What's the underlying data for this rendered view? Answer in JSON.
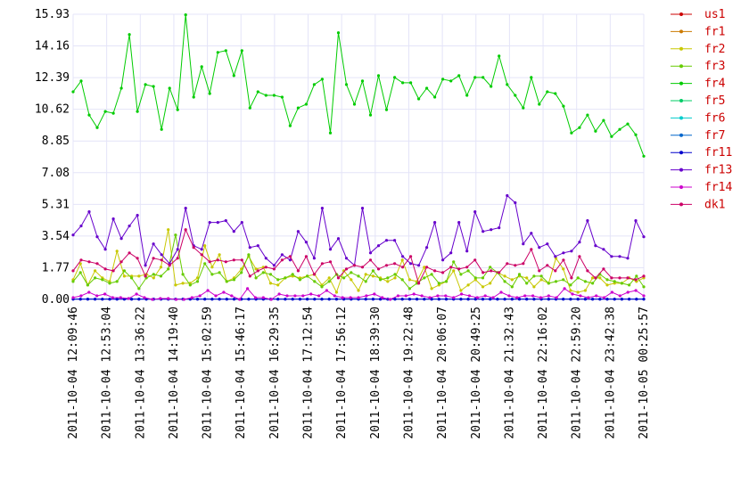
{
  "chart_data": {
    "type": "line",
    "title": "",
    "xlabel": "",
    "ylabel": "",
    "ylim": [
      0,
      15.93
    ],
    "y_ticks": [
      "0.00",
      "1.77",
      "3.54",
      "5.31",
      "7.08",
      "8.85",
      "10.62",
      "12.39",
      "14.16",
      "15.93"
    ],
    "grid": "on",
    "legend_placement": "right",
    "x_ticks": [
      "2011-10-04 12:09:46",
      "2011-10-04 12:53:04",
      "2011-10-04 13:36:22",
      "2011-10-04 14:19:40",
      "2011-10-04 15:02:59",
      "2011-10-04 15:46:17",
      "2011-10-04 16:29:35",
      "2011-10-04 17:12:54",
      "2011-10-04 17:56:12",
      "2011-10-04 18:39:30",
      "2011-10-04 19:22:48",
      "2011-10-04 20:06:07",
      "2011-10-04 20:49:25",
      "2011-10-04 21:32:43",
      "2011-10-04 22:16:02",
      "2011-10-04 22:59:20",
      "2011-10-04 23:42:38",
      "2011-10-05 00:25:57"
    ],
    "series": [
      {
        "name": "us1",
        "color": "#cc0000",
        "values": []
      },
      {
        "name": "fr1",
        "color": "#cc7a00",
        "values": []
      },
      {
        "name": "fr2",
        "color": "#c8c800",
        "values": [
          1.1,
          2.0,
          0.8,
          1.6,
          1.2,
          1.0,
          2.7,
          1.3,
          1.3,
          1.3,
          1.4,
          1.2,
          1.8,
          3.9,
          0.8,
          0.9,
          0.9,
          1.2,
          3.0,
          1.8,
          2.5,
          1.0,
          1.2,
          1.7,
          2.4,
          1.7,
          1.8,
          0.9,
          0.8,
          1.2,
          1.3,
          1.2,
          1.3,
          1.4,
          0.8,
          1.2,
          0.4,
          1.6,
          1.1,
          0.5,
          1.4,
          1.3,
          1.2,
          1.0,
          1.2,
          2.2,
          1.1,
          1.0,
          1.8,
          0.6,
          0.8,
          1.0,
          1.6,
          0.5,
          0.8,
          1.1,
          0.7,
          0.9,
          1.5,
          1.3,
          1.1,
          1.3,
          1.2,
          0.7,
          1.1,
          0.9,
          2.3,
          1.7,
          0.5,
          0.4,
          0.5,
          1.2,
          1.2,
          0.8,
          0.9,
          0.9,
          1.2,
          1.0,
          1.2
        ]
      },
      {
        "name": "fr3",
        "color": "#66cc00",
        "values": [
          1.0,
          1.5,
          0.8,
          1.2,
          1.1,
          0.9,
          1.0,
          1.6,
          1.2,
          0.6,
          1.2,
          1.4,
          1.3,
          1.7,
          3.6,
          1.4,
          0.8,
          1.0,
          2.0,
          1.4,
          1.5,
          1.0,
          1.1,
          1.5,
          2.5,
          1.2,
          1.5,
          1.4,
          1.1,
          1.2,
          1.4,
          1.1,
          1.3,
          1.0,
          0.7,
          1.0,
          1.4,
          1.2,
          1.5,
          1.3,
          1.0,
          1.6,
          1.1,
          1.2,
          1.4,
          1.1,
          0.6,
          0.9,
          1.2,
          1.4,
          0.9,
          1.0,
          2.1,
          1.4,
          1.6,
          1.2,
          1.2,
          1.8,
          1.5,
          1.0,
          0.7,
          1.4,
          0.9,
          1.3,
          1.3,
          0.9,
          1.0,
          1.1,
          0.8,
          1.2,
          1.0,
          0.9,
          1.4,
          1.1,
          1.0,
          0.9,
          0.8,
          1.3,
          0.7
        ]
      },
      {
        "name": "fr4",
        "color": "#00cc00",
        "values": [
          11.6,
          12.2,
          10.3,
          9.6,
          10.5,
          10.4,
          11.8,
          14.8,
          10.5,
          12.0,
          11.9,
          9.5,
          11.8,
          10.6,
          15.9,
          11.3,
          13.0,
          11.5,
          13.8,
          13.9,
          12.5,
          13.9,
          10.7,
          11.6,
          11.4,
          11.4,
          11.3,
          9.7,
          10.7,
          10.9,
          12.0,
          12.3,
          9.3,
          14.9,
          12.0,
          10.9,
          12.2,
          10.3,
          12.5,
          10.6,
          12.4,
          12.1,
          12.1,
          11.2,
          11.8,
          11.3,
          12.3,
          12.2,
          12.5,
          11.4,
          12.4,
          12.4,
          11.9,
          13.6,
          12.0,
          11.4,
          10.7,
          12.4,
          10.9,
          11.6,
          11.5,
          10.8,
          9.3,
          9.6,
          10.3,
          9.4,
          10.0,
          9.1,
          9.5,
          9.8,
          9.2,
          8.0
        ]
      },
      {
        "name": "fr5",
        "color": "#00cc66",
        "values": []
      },
      {
        "name": "fr6",
        "color": "#00cccc",
        "values": []
      },
      {
        "name": "fr7",
        "color": "#0066cc",
        "values": [
          0.02,
          0.02,
          0.02,
          0.02,
          0.02,
          0.02,
          0.02,
          0.02,
          0.02,
          0.02,
          0.02,
          0.02,
          0.02,
          0.02,
          0.02,
          0.02,
          0.02,
          0.02,
          0.02,
          0.02,
          0.02,
          0.02,
          0.02,
          0.02,
          0.02,
          0.02,
          0.02,
          0.02,
          0.02,
          0.02,
          0.02,
          0.02,
          0.02,
          0.02,
          0.02,
          0.02,
          0.02,
          0.02,
          0.02,
          0.02,
          0.02,
          0.02,
          0.02,
          0.02,
          0.02,
          0.02,
          0.02,
          0.02,
          0.02,
          0.02,
          0.02,
          0.02,
          0.02,
          0.02,
          0.02,
          0.02,
          0.02,
          0.02,
          0.02,
          0.02,
          0.02,
          0.02,
          0.02,
          0.02,
          0.02,
          0.02,
          0.02,
          0.02,
          0.02,
          0.02,
          0.02,
          0.02,
          0.02,
          0.02,
          0.02,
          0.02,
          0.02,
          0.02,
          0.02
        ]
      },
      {
        "name": "fr11",
        "color": "#0000cc",
        "values": [
          0.01,
          0.01,
          0.01,
          0.01,
          0.01,
          0.01,
          0.01,
          0.01,
          0.01,
          0.01,
          0.01,
          0.01,
          0.01,
          0.01,
          0.01,
          0.01,
          0.01,
          0.01,
          0.01,
          0.01,
          0.01,
          0.01,
          0.01,
          0.01,
          0.01,
          0.01,
          0.01,
          0.01,
          0.01,
          0.01,
          0.01,
          0.01,
          0.01,
          0.01,
          0.01,
          0.01,
          0.01,
          0.01,
          0.01,
          0.01,
          0.01,
          0.01,
          0.01,
          0.01,
          0.01,
          0.01,
          0.01,
          0.01,
          0.01,
          0.01,
          0.01,
          0.01,
          0.01,
          0.01,
          0.01,
          0.01,
          0.01,
          0.01,
          0.01,
          0.01,
          0.01,
          0.01,
          0.01,
          0.01,
          0.01,
          0.01,
          0.01,
          0.01,
          0.01,
          0.01,
          0.01,
          0.01,
          0.01,
          0.01,
          0.01,
          0.01,
          0.01,
          0.01,
          0.01
        ]
      },
      {
        "name": "fr13",
        "color": "#6600cc",
        "values": [
          3.6,
          4.1,
          4.9,
          3.5,
          2.8,
          4.5,
          3.4,
          4.1,
          4.7,
          1.9,
          3.1,
          2.5,
          2.0,
          2.8,
          5.1,
          3.0,
          2.8,
          4.3,
          4.3,
          4.4,
          3.8,
          4.3,
          2.9,
          3.0,
          2.3,
          1.9,
          2.5,
          2.2,
          3.8,
          3.2,
          2.3,
          5.1,
          2.8,
          3.4,
          2.3,
          1.9,
          5.1,
          2.6,
          3.0,
          3.3,
          3.3,
          2.4,
          2.0,
          1.9,
          2.9,
          4.3,
          2.2,
          2.6,
          4.3,
          2.7,
          4.9,
          3.8,
          3.9,
          4.0,
          5.8,
          5.4,
          3.1,
          3.7,
          2.9,
          3.1,
          2.4,
          2.6,
          2.7,
          3.2,
          4.4,
          3.0,
          2.8,
          2.4,
          2.4,
          2.3,
          4.4,
          3.5
        ]
      },
      {
        "name": "fr14",
        "color": "#cc00cc",
        "values": [
          0.1,
          0.2,
          0.4,
          0.2,
          0.3,
          0.1,
          0.1,
          0.05,
          0.3,
          0.1,
          0.0,
          0.05,
          0.05,
          0.0,
          0.0,
          0.1,
          0.2,
          0.5,
          0.2,
          0.4,
          0.2,
          0.0,
          0.6,
          0.1,
          0.1,
          0.0,
          0.3,
          0.2,
          0.2,
          0.2,
          0.3,
          0.2,
          0.5,
          0.2,
          0.1,
          0.1,
          0.1,
          0.2,
          0.3,
          0.1,
          0.0,
          0.2,
          0.2,
          0.3,
          0.2,
          0.1,
          0.2,
          0.2,
          0.1,
          0.3,
          0.2,
          0.1,
          0.2,
          0.1,
          0.4,
          0.2,
          0.1,
          0.2,
          0.2,
          0.1,
          0.2,
          0.1,
          0.6,
          0.3,
          0.2,
          0.1,
          0.2,
          0.1,
          0.4,
          0.2,
          0.4,
          0.5,
          0.2
        ]
      },
      {
        "name": "dk1",
        "color": "#cc0066",
        "values": [
          1.6,
          2.2,
          2.1,
          2.0,
          1.7,
          1.6,
          2.1,
          2.6,
          2.3,
          1.3,
          2.3,
          2.2,
          1.9,
          2.3,
          3.9,
          2.9,
          2.5,
          2.1,
          2.2,
          2.1,
          2.2,
          2.2,
          1.3,
          1.6,
          1.8,
          1.7,
          2.2,
          2.4,
          1.6,
          2.4,
          1.4,
          2.0,
          2.1,
          1.2,
          1.7,
          1.9,
          1.8,
          2.2,
          1.7,
          1.9,
          2.0,
          1.8,
          2.4,
          0.9,
          1.8,
          1.6,
          1.5,
          1.8,
          1.7,
          1.8,
          2.2,
          1.5,
          1.6,
          1.5,
          2.0,
          1.9,
          2.0,
          2.8,
          1.6,
          1.9,
          1.6,
          2.2,
          1.2,
          2.4,
          1.6,
          1.2,
          1.7,
          1.2,
          1.2,
          1.2,
          1.1,
          1.3
        ]
      }
    ]
  }
}
